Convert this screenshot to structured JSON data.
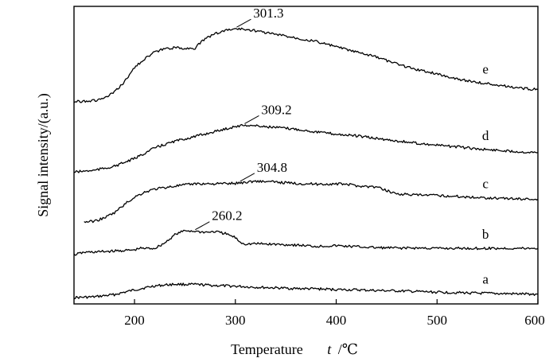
{
  "chart_data": {
    "type": "line",
    "title": "",
    "xlabel": "Temperature",
    "xlabel_symbol": "t",
    "xlabel_unit": "/℃",
    "ylabel": "Signal intensity/(a.u.)",
    "xlim": [
      140,
      600
    ],
    "x_ticks": [
      "200",
      "300",
      "400",
      "500",
      "600"
    ],
    "grid": false,
    "legend": "none",
    "series": [
      {
        "name": "a",
        "x": [
          140,
          160,
          180,
          200,
          220,
          240,
          260,
          280,
          300,
          320,
          340,
          360,
          380,
          400,
          420,
          440,
          460,
          480,
          500,
          520,
          540,
          560,
          580,
          600
        ],
        "y": [
          0.07,
          0.09,
          0.16,
          0.3,
          0.42,
          0.47,
          0.46,
          0.43,
          0.41,
          0.38,
          0.36,
          0.34,
          0.33,
          0.31,
          0.3,
          0.28,
          0.27,
          0.25,
          0.23,
          0.22,
          0.2,
          0.19,
          0.18,
          0.17
        ]
      },
      {
        "name": "b",
        "x": [
          140,
          150,
          160,
          180,
          200,
          205,
          220,
          230,
          240,
          250,
          260,
          270,
          280,
          290,
          300,
          305,
          310,
          320,
          340,
          360,
          380,
          400,
          420,
          440,
          460,
          480,
          500,
          520,
          540,
          560,
          580,
          600
        ],
        "y": [
          1.35,
          1.42,
          1.43,
          1.46,
          1.49,
          1.54,
          1.54,
          1.7,
          1.95,
          2.07,
          2.05,
          2.02,
          2.04,
          1.98,
          1.86,
          1.72,
          1.67,
          1.68,
          1.66,
          1.64,
          1.6,
          1.62,
          1.59,
          1.56,
          1.55,
          1.55,
          1.54,
          1.54,
          1.54,
          1.54,
          1.54,
          1.54
        ]
      },
      {
        "name": "c",
        "x": [
          150,
          160,
          170,
          180,
          190,
          200,
          210,
          220,
          240,
          260,
          280,
          300,
          320,
          340,
          360,
          380,
          400,
          410,
          420,
          440,
          460,
          480,
          500,
          520,
          540,
          560,
          580,
          600
        ],
        "y": [
          2.33,
          2.35,
          2.45,
          2.6,
          2.85,
          3.07,
          3.22,
          3.31,
          3.4,
          3.47,
          3.47,
          3.48,
          3.55,
          3.52,
          3.48,
          3.46,
          3.46,
          3.46,
          3.41,
          3.37,
          3.17,
          3.13,
          3.12,
          3.09,
          3.06,
          3.04,
          3.02,
          3.01
        ]
      },
      {
        "name": "d",
        "x": [
          140,
          160,
          180,
          200,
          220,
          240,
          260,
          280,
          300,
          310,
          320,
          340,
          360,
          380,
          400,
          420,
          440,
          460,
          480,
          500,
          520,
          540,
          560,
          580,
          600
        ],
        "y": [
          3.82,
          3.87,
          3.99,
          4.22,
          4.54,
          4.74,
          4.88,
          5.03,
          5.18,
          5.22,
          5.2,
          5.15,
          5.1,
          5.02,
          4.95,
          4.9,
          4.82,
          4.75,
          4.68,
          4.62,
          4.57,
          4.51,
          4.47,
          4.43,
          4.4
        ]
      },
      {
        "name": "e",
        "x": [
          140,
          150,
          160,
          170,
          180,
          190,
          200,
          210,
          220,
          230,
          240,
          250,
          260,
          270,
          280,
          290,
          300,
          310,
          320,
          340,
          360,
          380,
          400,
          420,
          440,
          460,
          480,
          500,
          520,
          540,
          560,
          580,
          600
        ],
        "y": [
          5.92,
          5.94,
          5.95,
          6.02,
          6.2,
          6.51,
          6.94,
          7.2,
          7.4,
          7.5,
          7.53,
          7.51,
          7.52,
          7.8,
          7.95,
          8.05,
          8.1,
          8.08,
          8.04,
          7.93,
          7.83,
          7.72,
          7.56,
          7.4,
          7.25,
          7.05,
          6.88,
          6.75,
          6.6,
          6.5,
          6.42,
          6.33,
          6.28
        ]
      }
    ],
    "annotations": [
      {
        "text": "260.2",
        "series": "b",
        "x": 260.2
      },
      {
        "text": "304.8",
        "series": "c",
        "x": 304.8
      },
      {
        "text": "309.2",
        "series": "d",
        "x": 309.2
      },
      {
        "text": "301.3",
        "series": "e",
        "x": 301.3
      }
    ]
  }
}
